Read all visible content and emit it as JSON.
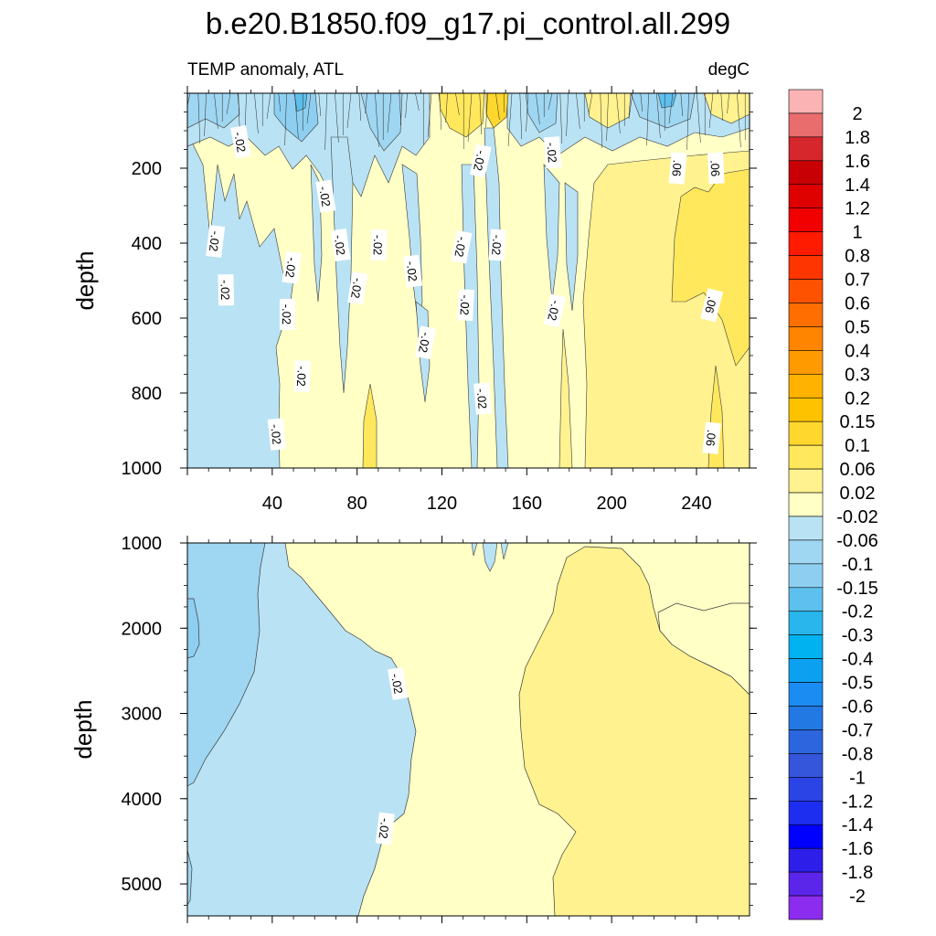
{
  "chart_data": [
    {
      "type": "heatmap",
      "title": "b.e20.B1850.f09_g17.pi_control.all.299",
      "subtitle_left": "TEMP anomaly, ATL",
      "subtitle_right": "degC",
      "ylabel": "depth",
      "xlim": [
        0,
        265
      ],
      "ylim": [
        0,
        1000
      ],
      "x_ticks": [
        40,
        80,
        120,
        160,
        200,
        240
      ],
      "y_ticks": [
        200,
        400,
        600,
        800,
        1000
      ],
      "contour_labels": [
        {
          "text": "-.02",
          "x": 25,
          "y": 130
        },
        {
          "text": "-.02",
          "x": 13,
          "y": 395
        },
        {
          "text": "-.02",
          "x": 18,
          "y": 525
        },
        {
          "text": "-.02",
          "x": 65,
          "y": 275
        },
        {
          "text": "-.02",
          "x": 49,
          "y": 465
        },
        {
          "text": "-.02",
          "x": 47,
          "y": 590
        },
        {
          "text": "-.02",
          "x": 72,
          "y": 405
        },
        {
          "text": "-.02",
          "x": 80,
          "y": 520
        },
        {
          "text": "-.02",
          "x": 90,
          "y": 405
        },
        {
          "text": "-.02",
          "x": 106,
          "y": 475
        },
        {
          "text": "-.02",
          "x": 112,
          "y": 665
        },
        {
          "text": "-.02",
          "x": 54,
          "y": 755
        },
        {
          "text": "-.02",
          "x": 42,
          "y": 910
        },
        {
          "text": "-.02",
          "x": 129,
          "y": 410
        },
        {
          "text": "-.02",
          "x": 131,
          "y": 565
        },
        {
          "text": "-.02",
          "x": 139,
          "y": 815
        },
        {
          "text": "-.02",
          "x": 138,
          "y": 180
        },
        {
          "text": "-.02",
          "x": 146,
          "y": 405
        },
        {
          "text": "-.02",
          "x": 172,
          "y": 158
        },
        {
          "text": "-.02",
          "x": 173,
          "y": 580
        },
        {
          "text": ".06",
          "x": 231,
          "y": 200
        },
        {
          "text": ".06",
          "x": 249,
          "y": 200
        },
        {
          "text": ".06",
          "x": 247,
          "y": 565
        },
        {
          "text": ".06",
          "x": 247,
          "y": 920
        }
      ]
    },
    {
      "type": "heatmap",
      "ylabel": "depth",
      "xlim": [
        0,
        265
      ],
      "ylim": [
        1000,
        5375
      ],
      "y_ticks": [
        1000,
        2000,
        3000,
        4000,
        5000
      ],
      "contour_labels": [
        {
          "text": "-.02",
          "x": 99,
          "y": 2650
        },
        {
          "text": "-.02",
          "x": 93,
          "y": 4350
        }
      ]
    }
  ],
  "colorbar": {
    "labels": [
      "2",
      "1.8",
      "1.6",
      "1.4",
      "1.2",
      "1",
      "0.8",
      "0.7",
      "0.6",
      "0.5",
      "0.4",
      "0.3",
      "0.2",
      "0.15",
      "0.1",
      "0.06",
      "0.02",
      "-0.02",
      "-0.06",
      "-0.1",
      "-0.15",
      "-0.2",
      "-0.3",
      "-0.4",
      "-0.5",
      "-0.6",
      "-0.7",
      "-0.8",
      "-1",
      "-1.2",
      "-1.4",
      "-1.6",
      "-1.8",
      "-2"
    ],
    "colors": [
      "#fbb3b3",
      "#e96d6d",
      "#d6272c",
      "#c80005",
      "#df0000",
      "#f20000",
      "#ff1b00",
      "#ff3500",
      "#ff5200",
      "#ff6e00",
      "#ff8400",
      "#ff9b00",
      "#ffb200",
      "#ffc200",
      "#ffd72d",
      "#ffe85c",
      "#fff28f",
      "#ffffc6",
      "#b9e3f4",
      "#9fd6f1",
      "#8ecff1",
      "#5dc0ee",
      "#28b6ed",
      "#00b3f0",
      "#0ca1f0",
      "#1b8cf1",
      "#2379e4",
      "#2c66de",
      "#3555da",
      "#2b44e6",
      "#1e2ef0",
      "#0000ff",
      "#2e1ee9",
      "#5c25ea",
      "#8c2cee"
    ]
  }
}
